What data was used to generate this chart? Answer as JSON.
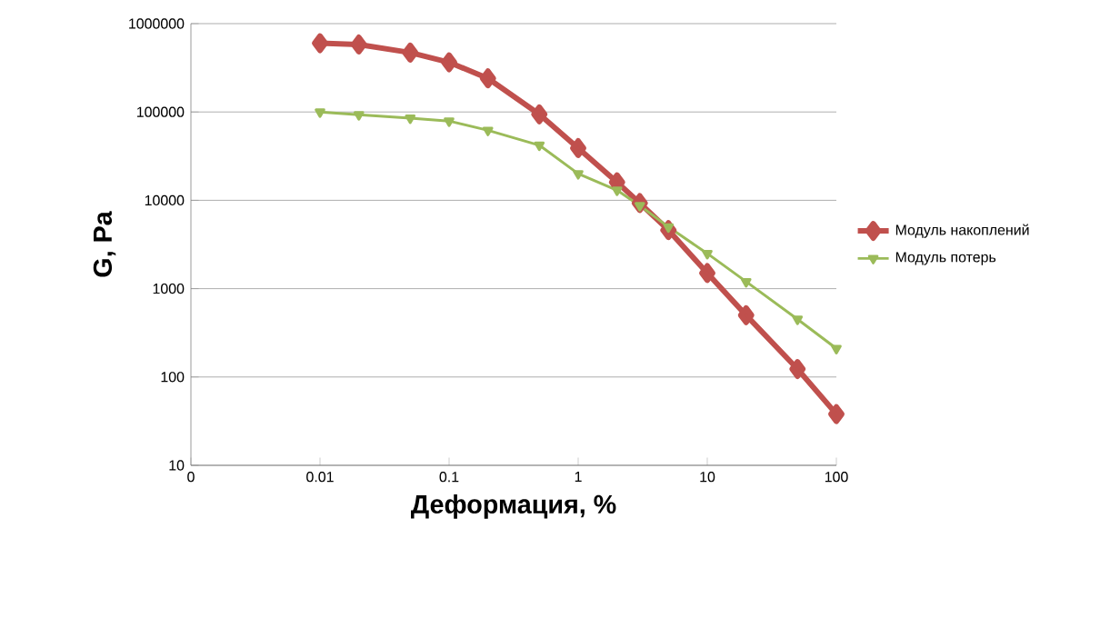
{
  "chart_data": {
    "type": "line",
    "xlabel": "Деформация, %",
    "ylabel": "G, Pa",
    "x": [
      0.01,
      0.02,
      0.05,
      0.1,
      0.2,
      0.5,
      1,
      2,
      3,
      5,
      10,
      20,
      50,
      100
    ],
    "series": [
      {
        "name": "Модуль накоплений",
        "color": "#c0504d",
        "marker": "diamond",
        "values": [
          600000,
          580000,
          470000,
          365000,
          240000,
          94000,
          39000,
          16000,
          9300,
          4600,
          1500,
          500,
          123,
          38
        ]
      },
      {
        "name": "Модуль потерь",
        "color": "#9bbb59",
        "marker": "triangle",
        "values": [
          100000,
          93000,
          85000,
          79000,
          62000,
          42000,
          20000,
          13000,
          8700,
          5000,
          2500,
          1200,
          450,
          210
        ]
      }
    ],
    "log": "xy",
    "xlim": [
      0.001,
      100
    ],
    "ylim": [
      10,
      1000000
    ],
    "xticks": [
      {
        "value": 0.001,
        "label": "0"
      },
      0.01,
      0.1,
      1,
      10,
      100
    ],
    "yticks": [
      10,
      100,
      1000,
      10000,
      100000,
      1000000
    ],
    "grid": "y",
    "legend": "right",
    "line_style": "solid"
  }
}
